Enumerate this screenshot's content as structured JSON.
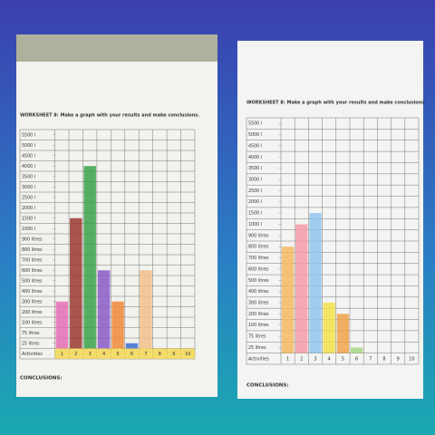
{
  "chart_data": [
    {
      "type": "bar",
      "title": "WORKSHEET 8: Make a graph with your results and make conclusions.",
      "x_label": "Activities",
      "footer": "CONCLUSIONS:",
      "categories": [
        "1",
        "2",
        "3",
        "4",
        "5",
        "6",
        "7",
        "8",
        "9",
        "10"
      ],
      "values": [
        300,
        1500,
        4000,
        600,
        300,
        25,
        600,
        null,
        null,
        null
      ],
      "colors": [
        "#e56fb5",
        "#9b3a2e",
        "#3aa24a",
        "#8a5cc8",
        "#f08a3a",
        "#3b6fd1",
        "#f5c08a",
        null,
        null,
        null
      ],
      "ylim": [
        0,
        5500
      ],
      "yticks": [
        {
          "value": 25,
          "label": "25 litres"
        },
        {
          "value": 75,
          "label": "75 litres"
        },
        {
          "value": 100,
          "label": "100 litres"
        },
        {
          "value": 200,
          "label": "200 litres"
        },
        {
          "value": 300,
          "label": "300 litres"
        },
        {
          "value": 400,
          "label": "400 litres"
        },
        {
          "value": 500,
          "label": "500 litres"
        },
        {
          "value": 600,
          "label": "600 litres"
        },
        {
          "value": 700,
          "label": "700 litres"
        },
        {
          "value": 800,
          "label": "800 litres"
        },
        {
          "value": 900,
          "label": "900 litres"
        },
        {
          "value": 1000,
          "label": "1000 l"
        },
        {
          "value": 1500,
          "label": "1500 l"
        },
        {
          "value": 2000,
          "label": "2000 l"
        },
        {
          "value": 2500,
          "label": "2500 l"
        },
        {
          "value": 3000,
          "label": "3000 l"
        },
        {
          "value": 3500,
          "label": "3500 l"
        },
        {
          "value": 4000,
          "label": "4000 l"
        },
        {
          "value": 4500,
          "label": "4500 l"
        },
        {
          "value": 5000,
          "label": "5000 l"
        },
        {
          "value": 5500,
          "label": "5500 l"
        }
      ]
    },
    {
      "type": "bar",
      "title": "WORKSHEET 8: Make a graph with your results and make conclusions.",
      "x_label": "Activities",
      "footer": "CONCLUSIONS:",
      "categories": [
        "1",
        "2",
        "3",
        "4",
        "5",
        "6",
        "7",
        "8",
        "9",
        "10"
      ],
      "values": [
        800,
        1000,
        1500,
        300,
        200,
        25,
        null,
        null,
        null,
        null
      ],
      "colors": [
        "#f4b860",
        "#f39aa8",
        "#8fc4ee",
        "#f2e04a",
        "#f0a24a",
        "#a6d88a",
        null,
        null,
        null,
        null
      ],
      "ylim": [
        0,
        5500
      ],
      "yticks": [
        {
          "value": 25,
          "label": "25 litres"
        },
        {
          "value": 75,
          "label": "75 litres"
        },
        {
          "value": 100,
          "label": "100 litres"
        },
        {
          "value": 200,
          "label": "200 litres"
        },
        {
          "value": 300,
          "label": "300 litres"
        },
        {
          "value": 400,
          "label": "400 litres"
        },
        {
          "value": 500,
          "label": "500 litres"
        },
        {
          "value": 600,
          "label": "600 litres"
        },
        {
          "value": 700,
          "label": "700 litres"
        },
        {
          "value": 800,
          "label": "800 litres"
        },
        {
          "value": 900,
          "label": "900 litres"
        },
        {
          "value": 1000,
          "label": "1000 l"
        },
        {
          "value": 1500,
          "label": "1500 l"
        },
        {
          "value": 2000,
          "label": "2000 l"
        },
        {
          "value": 2500,
          "label": "2500 l"
        },
        {
          "value": 3000,
          "label": "3000 l"
        },
        {
          "value": 3500,
          "label": "3500 l"
        },
        {
          "value": 4000,
          "label": "4000 l"
        },
        {
          "value": 4500,
          "label": "4500 l"
        },
        {
          "value": 5000,
          "label": "5000 l"
        },
        {
          "value": 5500,
          "label": "5500 l"
        }
      ]
    }
  ]
}
